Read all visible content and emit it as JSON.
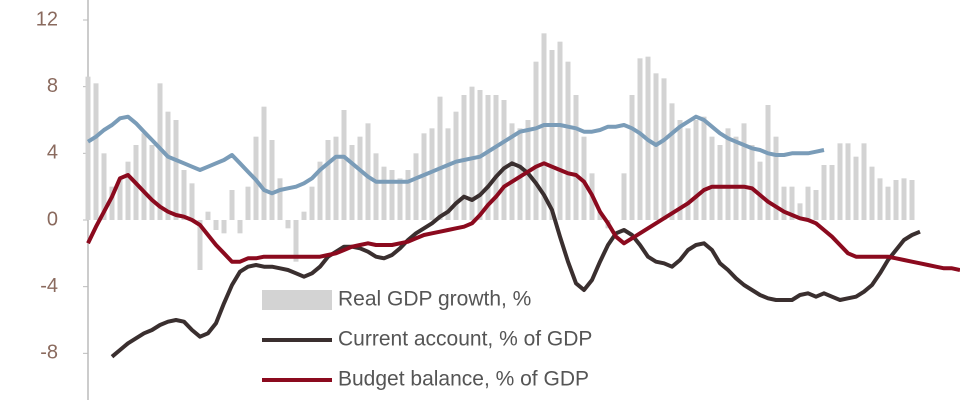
{
  "chart_data": {
    "type": "bar-line",
    "x": [
      0,
      1,
      2,
      3,
      4,
      5,
      6,
      7,
      8,
      9,
      10,
      11,
      12,
      13,
      14,
      15,
      16,
      17,
      18,
      19,
      20,
      21,
      22,
      23,
      24,
      25,
      26,
      27,
      28,
      29,
      30,
      31,
      32,
      33,
      34,
      35,
      36,
      37,
      38,
      39,
      40,
      41,
      42,
      43,
      44,
      45,
      46,
      47,
      48,
      49,
      50,
      51,
      52,
      53,
      54,
      55,
      56,
      57,
      58,
      59,
      60,
      61,
      62,
      63,
      64,
      65,
      66,
      67,
      68,
      69,
      70,
      71,
      72,
      73,
      74,
      75,
      76,
      77,
      78,
      79,
      80,
      81,
      82,
      83,
      84,
      85,
      86,
      87,
      88,
      89,
      90,
      91,
      92,
      93,
      94,
      95,
      96,
      97,
      98,
      99,
      100,
      101,
      102,
      103,
      104,
      105,
      106,
      107,
      108,
      109
    ],
    "xlim": [
      0,
      109
    ],
    "ylim": [
      -10.8,
      13.2
    ],
    "yticks": [
      -8,
      -4,
      0,
      4,
      8,
      12
    ],
    "legend": "lower left",
    "series": [
      {
        "name": "Real GDP growth, %",
        "kind": "bar",
        "color": "#d3d3d3",
        "values": [
          8.6,
          8.2,
          4.0,
          2.0,
          2.5,
          3.5,
          4.5,
          5.2,
          4.5,
          8.2,
          6.5,
          6.0,
          3.0,
          2.2,
          -3.0,
          0.5,
          -0.6,
          -0.8,
          1.8,
          -0.8,
          2.0,
          5.0,
          6.8,
          4.8,
          2.5,
          -0.5,
          -2.5,
          0.5,
          2.0,
          3.5,
          4.8,
          5.0,
          6.6,
          4.5,
          5.0,
          5.8,
          4.0,
          3.2,
          3.0,
          2.5,
          3.0,
          4.0,
          5.2,
          5.5,
          7.4,
          5.5,
          6.5,
          7.5,
          8.0,
          7.8,
          7.5,
          7.5,
          7.2,
          5.8,
          5.5,
          6.0,
          9.5,
          11.2,
          10.2,
          10.7,
          9.5,
          7.5,
          5.0,
          2.8,
          0.5,
          -0.5,
          0.0,
          2.8,
          7.5,
          9.7,
          9.8,
          8.8,
          8.5,
          7.0,
          6.0,
          5.5,
          6.0,
          6.2,
          5.0,
          4.5,
          5.5,
          5.0,
          5.8,
          4.5,
          3.5,
          6.9,
          5.0,
          2.0,
          2.0,
          1.0,
          2.0,
          1.8,
          3.3,
          3.3,
          4.6,
          4.6,
          3.8,
          4.6,
          3.2,
          2.5,
          2.0,
          2.4,
          2.5,
          2.4,
          null,
          null,
          null,
          null,
          null,
          null
        ]
      },
      {
        "name": "Current account, % of GDP",
        "kind": "line",
        "color": "#3a2f2f",
        "values": [
          null,
          null,
          null,
          -8.2,
          -7.8,
          -7.4,
          -7.1,
          -6.8,
          -6.6,
          -6.3,
          -6.1,
          -6.0,
          -6.1,
          -6.6,
          -7.0,
          -6.8,
          -6.2,
          -5.0,
          -3.9,
          -3.1,
          -2.8,
          -2.7,
          -2.8,
          -2.8,
          -2.9,
          -3.0,
          -3.2,
          -3.4,
          -3.2,
          -2.8,
          -2.2,
          -1.9,
          -1.6,
          -1.6,
          -1.7,
          -1.9,
          -2.2,
          -2.3,
          -2.1,
          -1.7,
          -1.2,
          -0.8,
          -0.5,
          -0.2,
          0.2,
          0.5,
          1.0,
          1.4,
          1.2,
          1.5,
          2.0,
          2.6,
          3.1,
          3.4,
          3.2,
          2.8,
          2.2,
          1.5,
          0.6,
          -1.0,
          -2.5,
          -3.8,
          -4.2,
          -3.6,
          -2.5,
          -1.5,
          -0.8,
          -0.6,
          -0.9,
          -1.5,
          -2.2,
          -2.5,
          -2.6,
          -2.8,
          -2.4,
          -1.8,
          -1.5,
          -1.4,
          -1.8,
          -2.6,
          -3.0,
          -3.5,
          -3.9,
          -4.2,
          -4.5,
          -4.7,
          -4.8,
          -4.8,
          -4.8,
          -4.5,
          -4.4,
          -4.6,
          -4.4,
          -4.6,
          -4.8,
          -4.7,
          -4.6,
          -4.3,
          -3.9,
          -3.2,
          -2.4,
          -1.8,
          -1.2,
          -0.9,
          -0.7,
          null,
          null,
          null,
          null,
          null
        ]
      },
      {
        "name": "Budget balance, % of GDP",
        "kind": "line",
        "color": "#8b0a1e",
        "values": [
          -1.4,
          -0.4,
          0.5,
          1.4,
          2.5,
          2.7,
          2.2,
          1.7,
          1.2,
          0.8,
          0.5,
          0.3,
          0.2,
          0.0,
          -0.3,
          -0.9,
          -1.5,
          -2.0,
          -2.5,
          -2.5,
          -2.3,
          -2.3,
          -2.2,
          -2.2,
          -2.2,
          -2.2,
          -2.2,
          -2.2,
          -2.2,
          -2.2,
          -2.1,
          -2.0,
          -1.8,
          -1.6,
          -1.5,
          -1.4,
          -1.5,
          -1.5,
          -1.5,
          -1.4,
          -1.3,
          -1.1,
          -0.9,
          -0.8,
          -0.7,
          -0.6,
          -0.5,
          -0.4,
          -0.2,
          0.3,
          0.9,
          1.4,
          2.0,
          2.3,
          2.6,
          2.9,
          3.2,
          3.4,
          3.2,
          3.0,
          2.8,
          2.7,
          2.3,
          1.5,
          0.5,
          -0.2,
          -1.0,
          -1.4,
          -1.1,
          -0.8,
          -0.5,
          -0.2,
          0.1,
          0.4,
          0.7,
          1.0,
          1.4,
          1.8,
          2.0,
          2.0,
          2.0,
          2.0,
          2.0,
          1.9,
          1.5,
          1.1,
          0.8,
          0.5,
          0.3,
          0.1,
          0.0,
          -0.2,
          -0.6,
          -1.0,
          -1.5,
          -2.0,
          -2.2,
          -2.2,
          -2.2,
          -2.2,
          -2.2,
          -2.3,
          -2.4,
          -2.5,
          -2.6,
          -2.7,
          -2.8,
          -2.9,
          -2.9,
          -3.0
        ]
      },
      {
        "name": null,
        "kind": "line",
        "color": "#7a9cb8",
        "values": [
          4.7,
          5.0,
          5.4,
          5.7,
          6.1,
          6.2,
          5.8,
          5.3,
          4.8,
          4.3,
          3.8,
          3.6,
          3.4,
          3.2,
          3.0,
          3.2,
          3.4,
          3.6,
          3.9,
          3.4,
          2.9,
          2.4,
          1.8,
          1.6,
          1.8,
          1.9,
          2.0,
          2.2,
          2.5,
          3.0,
          3.4,
          3.8,
          3.8,
          3.4,
          3.0,
          2.6,
          2.3,
          2.3,
          2.3,
          2.3,
          2.3,
          2.5,
          2.7,
          2.9,
          3.1,
          3.3,
          3.5,
          3.6,
          3.7,
          3.8,
          4.1,
          4.4,
          4.7,
          5.0,
          5.3,
          5.4,
          5.5,
          5.7,
          5.7,
          5.7,
          5.6,
          5.5,
          5.3,
          5.3,
          5.4,
          5.6,
          5.6,
          5.7,
          5.5,
          5.2,
          4.8,
          4.5,
          4.8,
          5.2,
          5.6,
          5.9,
          6.2,
          6.0,
          5.6,
          5.2,
          4.9,
          4.7,
          4.5,
          4.3,
          4.2,
          4.0,
          3.9,
          3.9,
          4.0,
          4.0,
          4.0,
          4.1,
          4.2,
          null,
          null,
          null,
          null,
          null,
          null,
          null,
          null,
          null,
          null,
          null,
          null,
          null,
          null,
          null,
          null,
          null
        ]
      }
    ]
  }
}
